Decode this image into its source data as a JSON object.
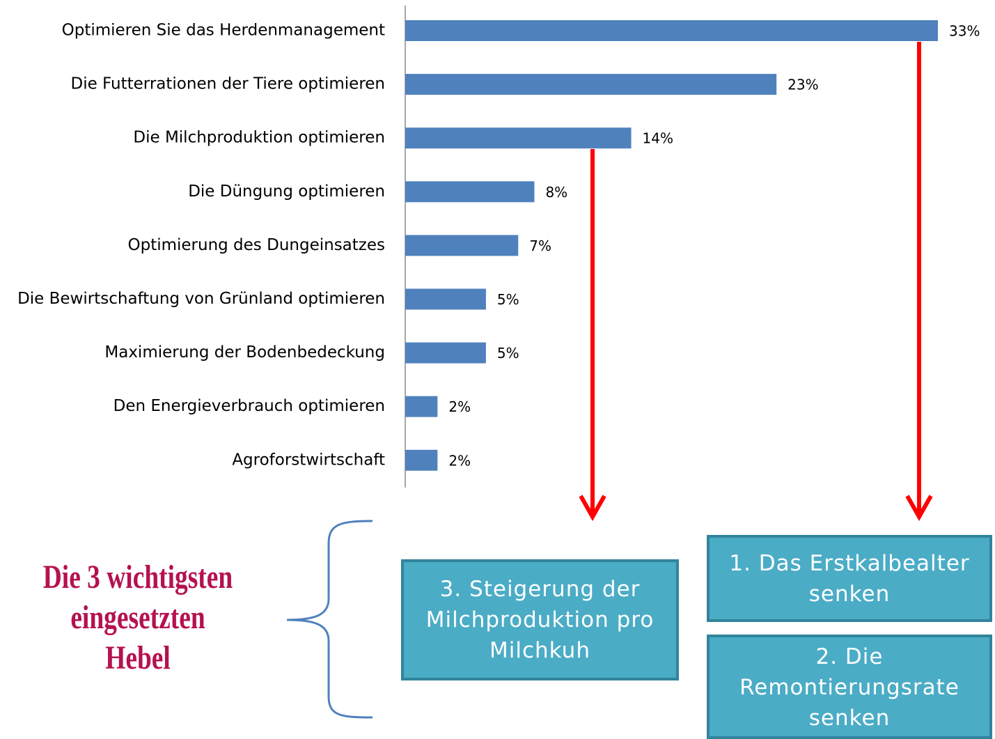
{
  "chart_data": {
    "type": "barh",
    "categories": [
      "Optimieren Sie das Herdenmanagement",
      "Die Futterrationen der Tiere optimieren",
      "Die Milchproduktion optimieren",
      "Die Düngung optimieren",
      "Optimierung des Dungeinsatzes",
      "Die Bewirtschaftung von Grünland optimieren",
      "Maximierung der Bodenbedeckung",
      "Den Energieverbrauch optimieren",
      "Agroforstwirtschaft"
    ],
    "values": [
      33,
      23,
      14,
      8,
      7,
      5,
      5,
      2,
      2
    ],
    "value_labels": [
      "33%",
      "23%",
      "14%",
      "8%",
      "7%",
      "5%",
      "5%",
      "2%",
      "2%"
    ],
    "color": "#4f81bd",
    "annotations": {
      "heading": "Die 3 wichtigsten eingesetzten Hebel",
      "boxes": [
        "1. Das Erstkalbealter senken",
        "2. Die Remontierungsrate senken",
        "3. Steigerung der Milchproduktion pro Milchkuh"
      ]
    }
  }
}
